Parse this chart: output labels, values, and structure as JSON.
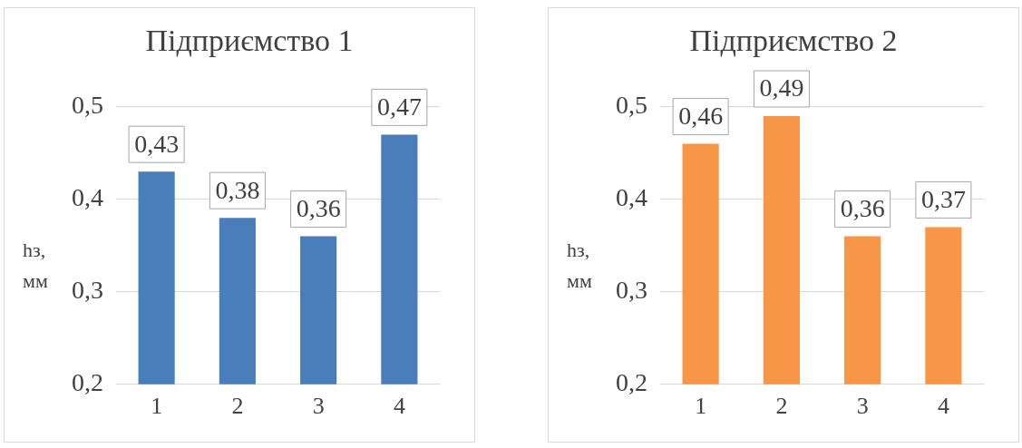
{
  "chart_data": [
    {
      "type": "bar",
      "title": "Підприємство 1",
      "ylabel": "hз, мм",
      "categories": [
        "1",
        "2",
        "3",
        "4"
      ],
      "values": [
        0.43,
        0.38,
        0.36,
        0.47
      ],
      "value_labels": [
        "0,43",
        "0,38",
        "0,36",
        "0,47"
      ],
      "color": "#4a7ebb",
      "ylim": [
        0.2,
        0.5
      ],
      "yticks": [
        {
          "value": 0.2,
          "label": "0,2"
        },
        {
          "value": 0.3,
          "label": "0,3"
        },
        {
          "value": 0.4,
          "label": "0,4"
        },
        {
          "value": 0.5,
          "label": "0,5"
        }
      ],
      "grid": "y",
      "legend": false
    },
    {
      "type": "bar",
      "title": "Підприємство 2",
      "ylabel": "hз, мм",
      "categories": [
        "1",
        "2",
        "3",
        "4"
      ],
      "values": [
        0.46,
        0.49,
        0.36,
        0.37
      ],
      "value_labels": [
        "0,46",
        "0,49",
        "0,36",
        "0,37"
      ],
      "color": "#f79646",
      "ylim": [
        0.2,
        0.5
      ],
      "yticks": [
        {
          "value": 0.2,
          "label": "0,2"
        },
        {
          "value": 0.3,
          "label": "0,3"
        },
        {
          "value": 0.4,
          "label": "0,4"
        },
        {
          "value": 0.5,
          "label": "0,5"
        }
      ],
      "grid": "y",
      "legend": false
    }
  ]
}
